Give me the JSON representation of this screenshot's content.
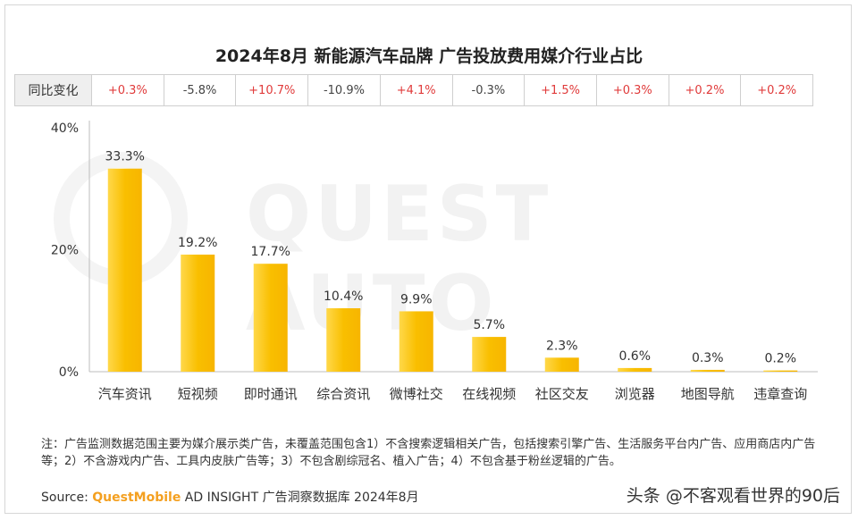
{
  "title": "2024年8月 新能源汽车品牌 广告投放费用媒介行业占比",
  "yoy": {
    "header": "同比变化",
    "values": [
      "+0.3%",
      "-5.8%",
      "+10.7%",
      "-10.9%",
      "+4.1%",
      "-0.3%",
      "+1.5%",
      "+0.3%",
      "+0.2%",
      "+0.2%"
    ]
  },
  "watermark": "QUEST AUTO",
  "chart_data": {
    "type": "bar",
    "categories": [
      "汽车资讯",
      "短视频",
      "即时通讯",
      "综合资讯",
      "微博社交",
      "在线视频",
      "社区交友",
      "浏览器",
      "地图导航",
      "违章查询"
    ],
    "values": [
      33.3,
      19.2,
      17.7,
      10.4,
      9.9,
      5.7,
      2.3,
      0.6,
      0.3,
      0.2
    ],
    "data_labels": [
      "33.3%",
      "19.2%",
      "17.7%",
      "10.4%",
      "9.9%",
      "5.7%",
      "2.3%",
      "0.6%",
      "0.3%",
      "0.2%"
    ],
    "yticks": [
      "0%",
      "20%",
      "40%"
    ],
    "ylim": [
      0,
      40
    ],
    "bar_color": "#f9bf00",
    "bar_color_light": "#ffd84a"
  },
  "note": "注：广告监测数据范围主要为媒介展示类广告，未覆盖范围包含1）不含搜索逻辑相关广告，包括搜索引擎广告、生活服务平台内广告、应用商店内广告等；2）不含游戏内广告、工具内皮肤广告等；3）不包含剧综冠名、植入广告；4）不包含基于粉丝逻辑的广告。",
  "source": {
    "prefix": "Source:",
    "brand": "QuestMobile",
    "rest": " AD INSIGHT 广告洞察数据库 2024年8月"
  },
  "credit": "头条 @不客观看世界的90后"
}
